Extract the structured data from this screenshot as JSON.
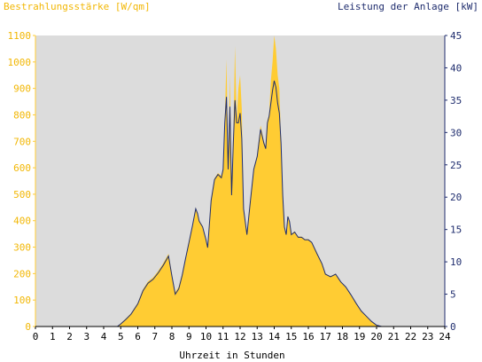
{
  "chart_data": {
    "type": "area",
    "left_title": "Bestrahlungsstärke [W/qm]",
    "right_title": "Leistung der Anlage [kW]",
    "xlabel": "Uhrzeit in Stunden",
    "xlim": [
      0,
      24
    ],
    "ylim_left": [
      0,
      1100
    ],
    "ylim_right": [
      0,
      45
    ],
    "x_ticks": [
      "0",
      "1",
      "2",
      "3",
      "4",
      "5",
      "6",
      "7",
      "8",
      "9",
      "10",
      "11",
      "12",
      "13",
      "14",
      "15",
      "16",
      "17",
      "18",
      "19",
      "20",
      "21",
      "22",
      "23",
      "24"
    ],
    "y_ticks_left": [
      "0",
      "100",
      "200",
      "300",
      "400",
      "500",
      "600",
      "700",
      "800",
      "900",
      "1000",
      "1100"
    ],
    "y_ticks_right": [
      "0",
      "5",
      "10",
      "15",
      "20",
      "25",
      "30",
      "35",
      "40",
      "45"
    ],
    "background_color": "#dcdcdc",
    "irradiance_color": "#ffcc33",
    "power_color": "#1f2d6e",
    "series": [
      {
        "name": "Bestrahlungsstärke [W/qm]",
        "axis": "left",
        "x": [
          0,
          4.8,
          5.0,
          5.3,
          5.6,
          6.0,
          6.3,
          6.6,
          6.9,
          7.2,
          7.5,
          7.8,
          8.0,
          8.2,
          8.4,
          8.6,
          8.8,
          9.0,
          9.2,
          9.4,
          9.5,
          9.6,
          9.8,
          10.0,
          10.1,
          10.3,
          10.5,
          10.7,
          10.9,
          11.0,
          11.1,
          11.2,
          11.3,
          11.4,
          11.5,
          11.6,
          11.7,
          11.8,
          11.9,
          12.0,
          12.1,
          12.2,
          12.4,
          12.6,
          12.8,
          13.0,
          13.2,
          13.4,
          13.5,
          13.6,
          13.7,
          13.8,
          13.9,
          14.0,
          14.1,
          14.2,
          14.3,
          14.4,
          14.5,
          14.6,
          14.7,
          14.8,
          14.9,
          15.0,
          15.2,
          15.4,
          15.6,
          15.8,
          16.0,
          16.2,
          16.5,
          16.8,
          17.0,
          17.3,
          17.6,
          17.9,
          18.2,
          18.5,
          18.8,
          19.1,
          19.4,
          19.7,
          20.0,
          20.3,
          20.5,
          24
        ],
        "values": [
          0,
          0,
          12,
          30,
          50,
          90,
          140,
          170,
          185,
          210,
          240,
          275,
          200,
          130,
          150,
          200,
          260,
          320,
          380,
          450,
          430,
          400,
          380,
          330,
          300,
          480,
          560,
          580,
          570,
          600,
          780,
          1010,
          600,
          950,
          500,
          700,
          1060,
          780,
          900,
          950,
          820,
          450,
          350,
          480,
          600,
          650,
          760,
          700,
          680,
          780,
          800,
          930,
          1000,
          1100,
          1050,
          950,
          900,
          700,
          500,
          380,
          350,
          420,
          400,
          350,
          360,
          340,
          340,
          330,
          330,
          320,
          280,
          240,
          200,
          190,
          200,
          170,
          150,
          120,
          90,
          60,
          40,
          20,
          5,
          0,
          0,
          0
        ]
      },
      {
        "name": "Leistung der Anlage [kW]",
        "axis": "right",
        "x": [
          0,
          4.8,
          5.0,
          5.3,
          5.6,
          6.0,
          6.3,
          6.6,
          6.9,
          7.2,
          7.5,
          7.8,
          8.0,
          8.2,
          8.4,
          8.6,
          8.8,
          9.0,
          9.2,
          9.4,
          9.5,
          9.6,
          9.8,
          10.0,
          10.1,
          10.3,
          10.5,
          10.7,
          10.9,
          11.0,
          11.1,
          11.2,
          11.3,
          11.4,
          11.5,
          11.6,
          11.7,
          11.8,
          11.9,
          12.0,
          12.1,
          12.2,
          12.4,
          12.6,
          12.8,
          13.0,
          13.2,
          13.4,
          13.5,
          13.6,
          13.7,
          13.8,
          13.9,
          14.0,
          14.1,
          14.2,
          14.3,
          14.4,
          14.5,
          14.6,
          14.7,
          14.8,
          14.9,
          15.0,
          15.2,
          15.4,
          15.6,
          15.8,
          16.0,
          16.2,
          16.5,
          16.8,
          17.0,
          17.3,
          17.6,
          17.9,
          18.2,
          18.5,
          18.8,
          19.1,
          19.4,
          19.7,
          20.0,
          20.3,
          20.5,
          24
        ],
        "values": [
          0,
          0,
          0.4,
          1.1,
          1.9,
          3.5,
          5.5,
          6.7,
          7.3,
          8.3,
          9.5,
          10.9,
          7.8,
          5.0,
          5.8,
          7.9,
          10.5,
          13.0,
          15.5,
          18.2,
          17.5,
          16.3,
          15.4,
          13.4,
          12.2,
          19.5,
          22.7,
          23.5,
          23.0,
          24.3,
          31.5,
          35.5,
          24.3,
          34.0,
          20.3,
          28.3,
          35.0,
          31.5,
          31.5,
          33.0,
          29.0,
          18.2,
          14.2,
          19.4,
          24.3,
          26.3,
          30.5,
          28.3,
          27.5,
          31.5,
          32.5,
          34.5,
          36.5,
          38.0,
          37.0,
          34.5,
          33.0,
          28.3,
          20.3,
          15.4,
          14.2,
          17.0,
          16.2,
          14.2,
          14.6,
          13.8,
          13.8,
          13.4,
          13.4,
          13.0,
          11.3,
          9.7,
          8.1,
          7.7,
          8.1,
          6.9,
          6.1,
          4.9,
          3.6,
          2.4,
          1.6,
          0.8,
          0.2,
          0,
          0,
          0
        ]
      }
    ]
  }
}
